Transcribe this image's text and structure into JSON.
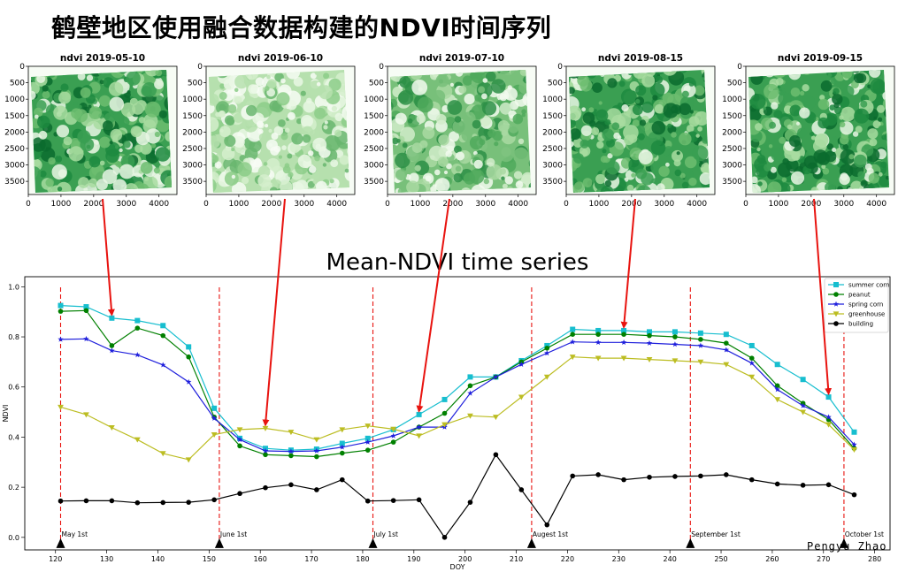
{
  "page": {
    "title": "鹤壁地区使用融合数据构建的NDVI时间序列",
    "author": "Pengyu Zhao"
  },
  "maps": [
    {
      "title": "ndvi 2019-05-10",
      "tone": "dark"
    },
    {
      "title": "ndvi 2019-06-10",
      "tone": "light"
    },
    {
      "title": "ndvi 2019-07-10",
      "tone": "medium"
    },
    {
      "title": "ndvi 2019-08-15",
      "tone": "dark"
    },
    {
      "title": "ndvi 2019-09-15",
      "tone": "dark"
    }
  ],
  "map_axes": {
    "xticks": [
      "0",
      "1000",
      "2000",
      "3000",
      "4000"
    ],
    "yticks": [
      "0",
      "500",
      "1000",
      "1500",
      "2000",
      "2500",
      "3000",
      "3500"
    ]
  },
  "arrow_color": "#e8130f",
  "chart_data": {
    "type": "line",
    "title": "Mean-NDVI time series",
    "xlabel": "DOY",
    "ylabel": "NDVI",
    "xlim": [
      114,
      283
    ],
    "ylim": [
      -0.05,
      1.04
    ],
    "xticks": [
      120,
      130,
      140,
      150,
      160,
      170,
      180,
      190,
      200,
      210,
      220,
      230,
      240,
      250,
      260,
      270,
      280
    ],
    "yticks": [
      0.0,
      0.2,
      0.4,
      0.6,
      0.8,
      1.0
    ],
    "legend_position": "top-right",
    "grid": false,
    "x": [
      121,
      126,
      131,
      136,
      141,
      146,
      151,
      156,
      161,
      166,
      171,
      176,
      181,
      186,
      191,
      196,
      201,
      206,
      211,
      216,
      221,
      226,
      231,
      236,
      241,
      246,
      251,
      256,
      261,
      266,
      271,
      276
    ],
    "series": [
      {
        "name": "summer corn",
        "color": "#17becf",
        "marker": "square",
        "values": [
          0.925,
          0.92,
          0.875,
          0.865,
          0.845,
          0.76,
          0.515,
          0.395,
          0.355,
          0.348,
          0.352,
          0.375,
          0.395,
          0.43,
          0.49,
          0.55,
          0.64,
          0.64,
          0.705,
          0.765,
          0.83,
          0.825,
          0.825,
          0.82,
          0.82,
          0.815,
          0.81,
          0.765,
          0.69,
          0.63,
          0.56,
          0.42
        ]
      },
      {
        "name": "peanut",
        "color": "#008000",
        "marker": "circle",
        "values": [
          0.902,
          0.905,
          0.765,
          0.835,
          0.805,
          0.72,
          0.48,
          0.365,
          0.33,
          0.326,
          0.322,
          0.336,
          0.348,
          0.38,
          0.44,
          0.495,
          0.605,
          0.64,
          0.7,
          0.755,
          0.81,
          0.81,
          0.81,
          0.805,
          0.8,
          0.79,
          0.775,
          0.715,
          0.605,
          0.535,
          0.47,
          0.355
        ]
      },
      {
        "name": "spring corn",
        "color": "#1f1fdc",
        "marker": "star",
        "values": [
          0.79,
          0.792,
          0.745,
          0.728,
          0.688,
          0.62,
          0.475,
          0.39,
          0.345,
          0.343,
          0.345,
          0.36,
          0.38,
          0.405,
          0.44,
          0.44,
          0.575,
          0.64,
          0.69,
          0.735,
          0.78,
          0.778,
          0.778,
          0.775,
          0.77,
          0.765,
          0.748,
          0.695,
          0.59,
          0.525,
          0.48,
          0.37
        ]
      },
      {
        "name": "greenhouse",
        "color": "#bcbd22",
        "marker": "triangle-down",
        "values": [
          0.52,
          0.49,
          0.438,
          0.39,
          0.335,
          0.31,
          0.41,
          0.43,
          0.435,
          0.42,
          0.39,
          0.43,
          0.445,
          0.432,
          0.405,
          0.45,
          0.485,
          0.48,
          0.56,
          0.64,
          0.72,
          0.715,
          0.715,
          0.71,
          0.705,
          0.7,
          0.69,
          0.64,
          0.55,
          0.5,
          0.45,
          0.35
        ]
      },
      {
        "name": "building",
        "color": "#000000",
        "marker": "circle",
        "values": [
          0.145,
          0.146,
          0.146,
          0.138,
          0.139,
          0.14,
          0.15,
          0.175,
          0.198,
          0.21,
          0.19,
          0.23,
          0.145,
          0.147,
          0.15,
          0.0,
          0.14,
          0.33,
          0.19,
          0.05,
          0.245,
          0.25,
          0.23,
          0.24,
          0.243,
          0.245,
          0.25,
          0.23,
          0.213,
          0.208,
          0.21,
          0.17
        ]
      }
    ],
    "annotations": [
      {
        "x": 121,
        "label": "May 1st"
      },
      {
        "x": 152,
        "label": "June 1st"
      },
      {
        "x": 182,
        "label": "July 1st"
      },
      {
        "x": 213,
        "label": "Augest 1st"
      },
      {
        "x": 244,
        "label": "September 1st"
      },
      {
        "x": 274,
        "label": "October 1st"
      }
    ],
    "arrow_targets": [
      {
        "map": 0,
        "x": 131,
        "y": 0.875
      },
      {
        "map": 1,
        "x": 161,
        "y": 0.435
      },
      {
        "map": 2,
        "x": 191,
        "y": 0.49
      },
      {
        "map": 3,
        "x": 231,
        "y": 0.825
      },
      {
        "map": 4,
        "x": 271,
        "y": 0.56
      }
    ]
  }
}
